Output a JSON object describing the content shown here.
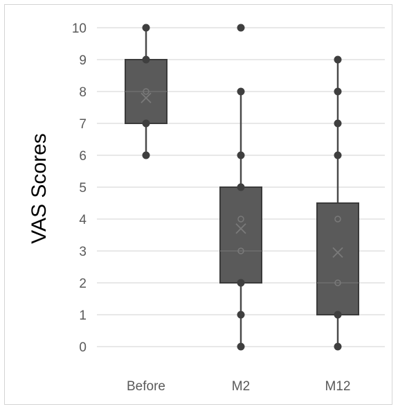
{
  "chart_data": {
    "type": "box",
    "ylabel": "VAS Scores",
    "xlabel": "",
    "ylim": [
      0,
      10
    ],
    "yticks": [
      0,
      1,
      2,
      3,
      4,
      5,
      6,
      7,
      8,
      9,
      10
    ],
    "grid": true,
    "categories": [
      "Before",
      "M2",
      "M12"
    ],
    "boxes": [
      {
        "category": "Before",
        "whisker_low": 6,
        "q1": 7,
        "median": 8,
        "q3": 9,
        "whisker_high": 10,
        "mean": 7.8,
        "points": [
          6,
          7,
          8,
          9,
          10
        ],
        "outliers": []
      },
      {
        "category": "M2",
        "whisker_low": 0,
        "q1": 2,
        "median": 3,
        "q3": 5,
        "whisker_high": 8,
        "mean": 3.7,
        "points": [
          0,
          1,
          2,
          3,
          4,
          5,
          6,
          8
        ],
        "outliers": [
          10
        ]
      },
      {
        "category": "M12",
        "whisker_low": 0,
        "q1": 1,
        "median": 2,
        "q3": 4.5,
        "whisker_high": 9,
        "mean": 2.95,
        "points": [
          0,
          1,
          2,
          4,
          6,
          7,
          8,
          9
        ],
        "outliers": []
      }
    ],
    "colors": {
      "box_fill": "#5a5a5a",
      "box_stroke": "#3a3a3a",
      "whisker": "#4a4a4a",
      "point": "#3f3f3f",
      "inner_marker": "#7a7a7a"
    }
  }
}
